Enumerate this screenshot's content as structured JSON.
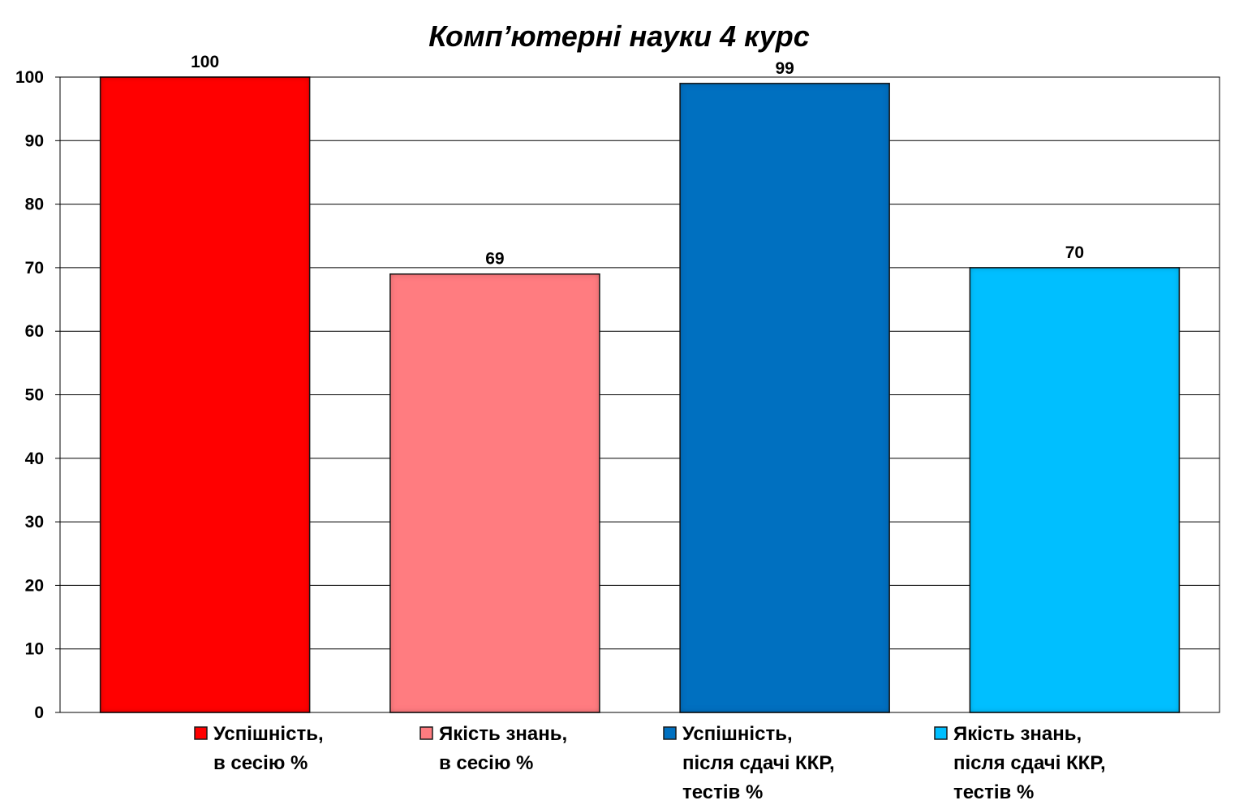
{
  "chart_data": {
    "type": "bar",
    "title": "Комп’ютерні науки 4 курс",
    "xlabel": "",
    "ylabel": "",
    "ylim": [
      0,
      100
    ],
    "yticks": [
      0,
      10,
      20,
      30,
      40,
      50,
      60,
      70,
      80,
      90,
      100
    ],
    "grid": true,
    "legend_position": "bottom",
    "series": [
      {
        "name": "Успішність, в сесію %",
        "legend_lines": [
          "Успішність,",
          "в сесію %"
        ],
        "value": 100,
        "color": "#ff0000"
      },
      {
        "name": "Якість знань, в сесію %",
        "legend_lines": [
          "Якість знань,",
          "в сесію %"
        ],
        "value": 69,
        "color": "#ff7c80"
      },
      {
        "name": "Успішність, після сдачі ККР, тестів %",
        "legend_lines": [
          "Успішність,",
          "після сдачі ККР,",
          "тестів %"
        ],
        "value": 99,
        "color": "#0070c0"
      },
      {
        "name": "Якість знань, після сдачі ККР, тестів %",
        "legend_lines": [
          "Якість знань,",
          "після сдачі ККР,",
          "тестів %"
        ],
        "value": 70,
        "color": "#00bfff"
      }
    ]
  }
}
